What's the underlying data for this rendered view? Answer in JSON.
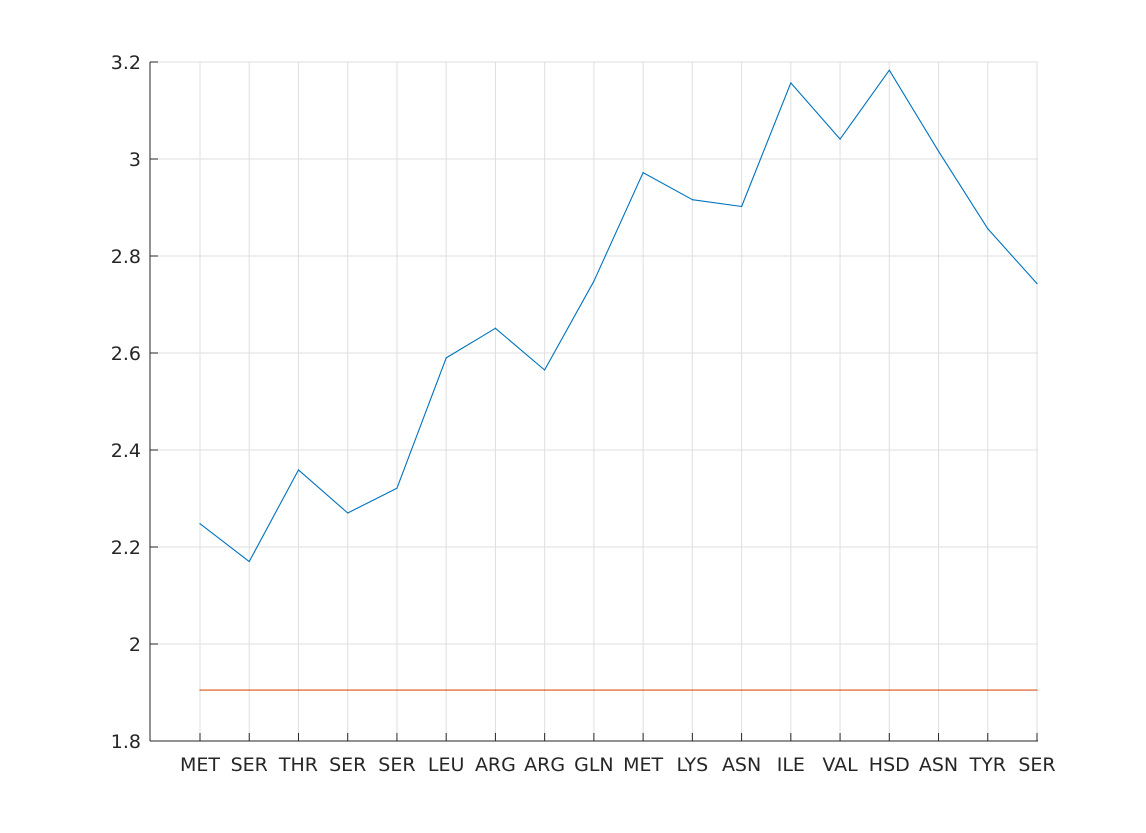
{
  "chart_data": {
    "type": "line",
    "title": "",
    "xlabel": "",
    "ylabel": "",
    "categories": [
      "MET",
      "SER",
      "THR",
      "SER",
      "SER",
      "LEU",
      "ARG",
      "ARG",
      "GLN",
      "MET",
      "LYS",
      "ASN",
      "ILE",
      "VAL",
      "HSD",
      "ASN",
      "TYR",
      "SER"
    ],
    "series": [
      {
        "color": "#0072BD",
        "values": [
          2.248,
          2.17,
          2.359,
          2.27,
          2.321,
          2.59,
          2.651,
          2.565,
          2.748,
          2.972,
          2.916,
          2.902,
          3.157,
          3.041,
          3.183,
          3.016,
          2.856,
          2.743
        ]
      },
      {
        "color": "#D95319",
        "values": [
          1.905,
          1.905,
          1.905,
          1.905,
          1.905,
          1.905,
          1.905,
          1.905,
          1.905,
          1.905,
          1.905,
          1.905,
          1.905,
          1.905,
          1.905,
          1.905,
          1.905,
          1.905
        ]
      }
    ],
    "ylim": [
      1.8,
      3.2
    ],
    "yticks": [
      1.8,
      2,
      2.2,
      2.4,
      2.6,
      2.8,
      3,
      3.2
    ],
    "ytick_labels": [
      "1.8",
      "2",
      "2.2",
      "2.4",
      "2.6",
      "2.8",
      "3",
      "3.2"
    ],
    "grid": true,
    "legend": "none"
  }
}
